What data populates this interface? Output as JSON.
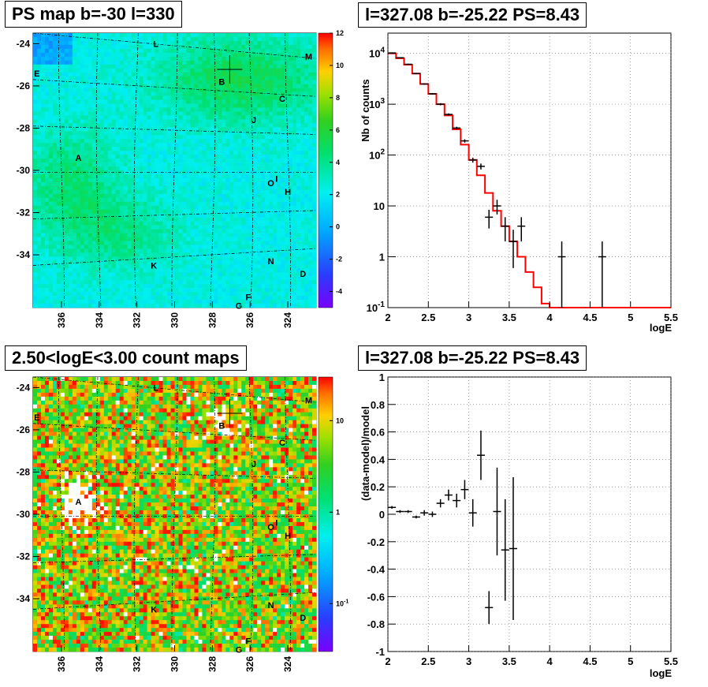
{
  "titles": {
    "map_top": "PS map b=-30 l=330",
    "spec_top": "l=327.08 b=-25.22 PS=8.43",
    "map_bottom": "2.50<logE<3.00 count maps",
    "ratio_bottom": "l=327.08 b=-25.22 PS=8.43"
  },
  "colors": {
    "model_line": "#ff0000",
    "data_marker": "#000000",
    "grid": "#888888"
  },
  "chart_data": [
    {
      "type": "heatmap",
      "title": "PS map b=-30 l=330",
      "x_ticks": [
        "336",
        "334",
        "332",
        "330",
        "328",
        "326",
        "324"
      ],
      "y_ticks": [
        "-24",
        "-26",
        "-28",
        "-30",
        "-32",
        "-34"
      ],
      "xlim": [
        337.5,
        322.5
      ],
      "ylim": [
        -36.5,
        -23.5
      ],
      "colorbar_ticks": [
        "12",
        "10",
        "8",
        "6",
        "4",
        "2",
        "0",
        "-2",
        "-4"
      ],
      "colorbar_range": [
        -5,
        12
      ],
      "source_labels": [
        {
          "label": "L",
          "l": 331.0,
          "b": -24.0
        },
        {
          "label": "M",
          "l": 322.9,
          "b": -24.6
        },
        {
          "label": "E",
          "l": 337.3,
          "b": -25.4
        },
        {
          "label": "B",
          "l": 327.5,
          "b": -25.8
        },
        {
          "label": "C",
          "l": 324.3,
          "b": -26.6
        },
        {
          "label": "J",
          "l": 325.8,
          "b": -27.6
        },
        {
          "label": "A",
          "l": 335.1,
          "b": -29.4
        },
        {
          "label": "O",
          "l": 324.9,
          "b": -30.6
        },
        {
          "label": "I",
          "l": 324.6,
          "b": -30.4
        },
        {
          "label": "H",
          "l": 324.0,
          "b": -31.0
        },
        {
          "label": "N",
          "l": 324.9,
          "b": -34.3
        },
        {
          "label": "D",
          "l": 323.2,
          "b": -34.9
        },
        {
          "label": "K",
          "l": 331.1,
          "b": -34.5
        },
        {
          "label": "F",
          "l": 326.1,
          "b": -36.0
        },
        {
          "label": "G",
          "l": 326.6,
          "b": -36.4
        }
      ],
      "crosshair": {
        "l": 327.08,
        "b": -25.22
      }
    },
    {
      "type": "line",
      "title": "l=327.08 b=-25.22 PS=8.43",
      "xlabel": "logE",
      "ylabel": "Nb of counts",
      "xlim": [
        2,
        5.5
      ],
      "ylim": [
        0.1,
        25000
      ],
      "yscale": "log",
      "grid": true,
      "x_ticks": [
        "2",
        "2.5",
        "3",
        "3.5",
        "4",
        "4.5",
        "5",
        "5.5"
      ],
      "y_ticks": [
        "10^4",
        "10^3",
        "10^2",
        "10",
        "1",
        "10^-1"
      ],
      "model_steps": {
        "edges": [
          2.0,
          2.1,
          2.2,
          2.3,
          2.4,
          2.5,
          2.6,
          2.7,
          2.8,
          2.9,
          3.0,
          3.1,
          3.2,
          3.3,
          3.4,
          3.5,
          3.6,
          3.7,
          3.8,
          3.9,
          4.0,
          4.1,
          4.2,
          4.3,
          4.4,
          4.5,
          4.6,
          4.7,
          4.8,
          4.9,
          5.0,
          5.1,
          5.2,
          5.3,
          5.4,
          5.5
        ],
        "values": [
          10000,
          8000,
          6000,
          4000,
          2500,
          1600,
          1000,
          600,
          320,
          160,
          80,
          40,
          18,
          8,
          4,
          2,
          1,
          0.5,
          0.25,
          0.12,
          0.1,
          0.1,
          0.1,
          0.1,
          0.1,
          0.1,
          0.1,
          0.1,
          0.1,
          0.1,
          0.1,
          0.1,
          0.1,
          0.1,
          0.1
        ]
      },
      "data_points": [
        {
          "x": 2.05,
          "y": 10200,
          "lo": 10000,
          "hi": 10400
        },
        {
          "x": 2.15,
          "y": 8200,
          "lo": 8000,
          "hi": 8400
        },
        {
          "x": 2.25,
          "y": 6100,
          "lo": 5950,
          "hi": 6250
        },
        {
          "x": 2.35,
          "y": 4000,
          "lo": 3900,
          "hi": 4100
        },
        {
          "x": 2.45,
          "y": 2500,
          "lo": 2420,
          "hi": 2580
        },
        {
          "x": 2.55,
          "y": 1600,
          "lo": 1540,
          "hi": 1660
        },
        {
          "x": 2.65,
          "y": 1000,
          "lo": 950,
          "hi": 1050
        },
        {
          "x": 2.75,
          "y": 630,
          "lo": 600,
          "hi": 660
        },
        {
          "x": 2.85,
          "y": 340,
          "lo": 320,
          "hi": 360
        },
        {
          "x": 2.95,
          "y": 190,
          "lo": 176,
          "hi": 204
        },
        {
          "x": 3.05,
          "y": 80,
          "lo": 71,
          "hi": 89
        },
        {
          "x": 3.15,
          "y": 60,
          "lo": 52,
          "hi": 68
        },
        {
          "x": 3.25,
          "y": 6,
          "lo": 3.6,
          "hi": 8.4
        },
        {
          "x": 3.35,
          "y": 10,
          "lo": 6.8,
          "hi": 13.2
        },
        {
          "x": 3.45,
          "y": 4,
          "lo": 2,
          "hi": 6
        },
        {
          "x": 3.55,
          "y": 2,
          "lo": 0.6,
          "hi": 3.4
        },
        {
          "x": 3.65,
          "y": 4,
          "lo": 2,
          "hi": 6
        },
        {
          "x": 4.15,
          "y": 1,
          "lo": 0.1,
          "hi": 2
        },
        {
          "x": 4.65,
          "y": 1,
          "lo": 0.1,
          "hi": 2
        }
      ]
    },
    {
      "type": "heatmap",
      "title": "2.50<logE<3.00 count maps",
      "x_ticks": [
        "336",
        "334",
        "332",
        "330",
        "328",
        "326",
        "324"
      ],
      "y_ticks": [
        "-24",
        "-26",
        "-28",
        "-30",
        "-32",
        "-34"
      ],
      "xlim": [
        337.5,
        322.5
      ],
      "ylim": [
        -36.5,
        -23.5
      ],
      "colorbar_ticks": [
        "10",
        "1",
        "10^-1"
      ],
      "colorbar_scale": "log",
      "colorbar_range": [
        0.03,
        30
      ],
      "hotspots": [
        {
          "label": "A",
          "l": 335.0,
          "b": -29.6
        },
        {
          "label": "B",
          "l": 327.5,
          "b": -25.8
        }
      ],
      "crosshair": {
        "l": 327.08,
        "b": -25.22
      }
    },
    {
      "type": "scatter",
      "title": "l=327.08 b=-25.22 PS=8.43",
      "xlabel": "logE",
      "ylabel": "(data-model)/model",
      "xlim": [
        2,
        5.5
      ],
      "ylim": [
        -1,
        1
      ],
      "grid": true,
      "x_ticks": [
        "2",
        "2.5",
        "3",
        "3.5",
        "4",
        "4.5",
        "5",
        "5.5"
      ],
      "y_ticks": [
        "1",
        "0.8",
        "0.6",
        "0.4",
        "0.2",
        "0",
        "-0.2",
        "-0.4",
        "-0.6",
        "-0.8",
        "-1"
      ],
      "points": [
        {
          "x": 2.05,
          "y": 0.05,
          "err": 0.01
        },
        {
          "x": 2.15,
          "y": 0.02,
          "err": 0.01
        },
        {
          "x": 2.25,
          "y": 0.02,
          "err": 0.01
        },
        {
          "x": 2.35,
          "y": -0.02,
          "err": 0.01
        },
        {
          "x": 2.45,
          "y": 0.01,
          "err": 0.02
        },
        {
          "x": 2.55,
          "y": 0.0,
          "err": 0.02
        },
        {
          "x": 2.65,
          "y": 0.08,
          "err": 0.03
        },
        {
          "x": 2.75,
          "y": 0.14,
          "err": 0.04
        },
        {
          "x": 2.85,
          "y": 0.1,
          "err": 0.05
        },
        {
          "x": 2.95,
          "y": 0.18,
          "err": 0.07
        },
        {
          "x": 3.05,
          "y": 0.01,
          "err": 0.1
        },
        {
          "x": 3.15,
          "y": 0.43,
          "err": 0.18
        },
        {
          "x": 3.25,
          "y": -0.68,
          "err": 0.12
        },
        {
          "x": 3.35,
          "y": 0.02,
          "err": 0.32
        },
        {
          "x": 3.45,
          "y": -0.26,
          "err": 0.37
        },
        {
          "x": 3.55,
          "y": -0.25,
          "err": 0.52
        }
      ]
    }
  ]
}
